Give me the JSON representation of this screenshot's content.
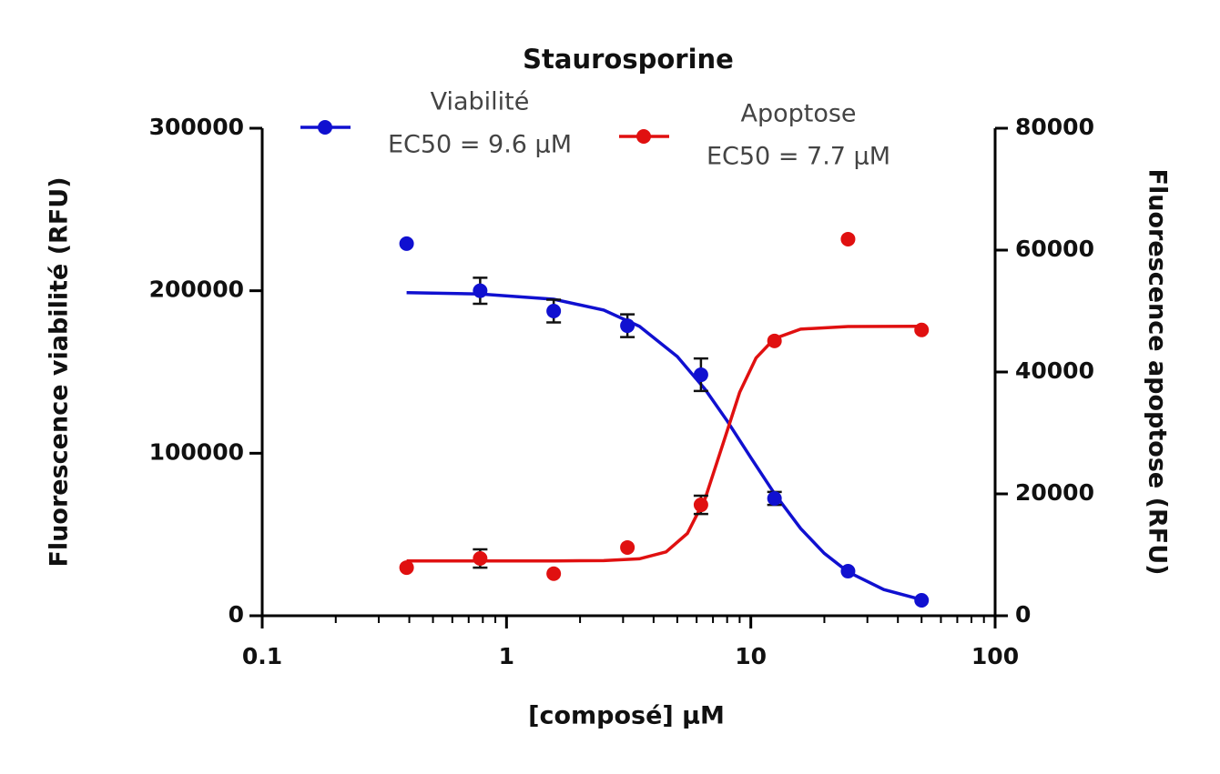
{
  "chart_data": {
    "type": "scatter",
    "title": "Staurosporine",
    "xlabel": "[composé] µM",
    "ylabel": "Fluorescence  viabilité (RFU)",
    "y2label": "Fluorescence apoptose (RFU)",
    "xscale": "log",
    "xlim": [
      0.1,
      100
    ],
    "xticks": [
      0.1,
      1,
      10,
      100
    ],
    "ylim": [
      0,
      300000
    ],
    "yticks": [
      0,
      100000,
      200000,
      300000
    ],
    "y2lim": [
      0,
      80000
    ],
    "y2ticks": [
      0,
      20000,
      40000,
      60000,
      80000
    ],
    "x": [
      0.39,
      0.78,
      1.56,
      3.125,
      6.25,
      12.5,
      25,
      50
    ],
    "series": [
      {
        "name": "Viabilité",
        "annotation": "EC50 = 9.6 µM",
        "color": "#1010d0",
        "axis": "y",
        "values": [
          229000,
          200000,
          187500,
          178500,
          148300,
          72200,
          27400,
          9500
        ],
        "errors": [
          null,
          8000,
          7000,
          7000,
          10000,
          4000,
          null,
          null
        ],
        "fit_x": [
          0.39,
          0.78,
          1.56,
          2.5,
          3.5,
          5,
          6.5,
          8,
          10,
          12.5,
          16,
          20,
          25,
          35,
          50
        ],
        "fit_values": [
          198800,
          198000,
          194800,
          188100,
          178100,
          159500,
          139300,
          119900,
          97300,
          75100,
          53700,
          38400,
          27000,
          16100,
          9900
        ]
      },
      {
        "name": "Apoptose",
        "annotation": "EC50 = 7.7 µM",
        "color": "#e01010",
        "axis": "y2",
        "values": [
          7900,
          9400,
          6900,
          11200,
          18200,
          45100,
          61800,
          46900
        ],
        "errors": [
          null,
          1500,
          null,
          null,
          1500,
          null,
          null,
          null
        ],
        "fit_x": [
          0.39,
          0.78,
          1.56,
          2.5,
          3.5,
          4.5,
          5.5,
          6.5,
          7.7,
          9,
          10.5,
          12.5,
          16,
          25,
          50
        ],
        "fit_values": [
          9000,
          9000,
          9000,
          9045,
          9340,
          10475,
          13510,
          19230,
          28250,
          36660,
          42300,
          45500,
          47030,
          47470,
          47500
        ]
      }
    ]
  }
}
